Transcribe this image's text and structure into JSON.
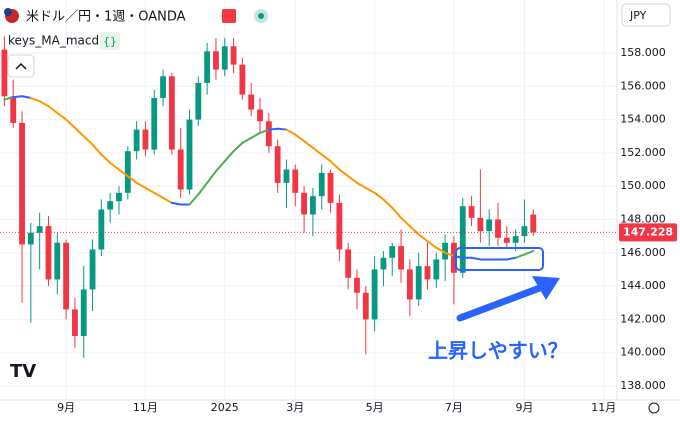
{
  "header": {
    "symbol": "米ドル／円・1週・OANDA",
    "currency": "JPY"
  },
  "chart_data": {
    "type": "candlestick",
    "categories": [
      null,
      null,
      null,
      null,
      null,
      null,
      null,
      "9月",
      null,
      null,
      null,
      null,
      null,
      null,
      null,
      null,
      "11月",
      null,
      null,
      null,
      null,
      null,
      null,
      null,
      null,
      "2025",
      null,
      null,
      null,
      null,
      null,
      null,
      null,
      "3月",
      null,
      null,
      null,
      null,
      null,
      null,
      null,
      null,
      "5月",
      null,
      null,
      null,
      null,
      null,
      null,
      null,
      null,
      "7月",
      null,
      null,
      null,
      null,
      null,
      null,
      null,
      "9月",
      null,
      null,
      null,
      null,
      null,
      null,
      null,
      null,
      "11月",
      null
    ],
    "open": [
      158.2,
      155.4,
      153.8,
      146.5,
      147.2,
      147.6,
      144.4,
      146.6,
      142.6,
      141.0,
      143.8,
      146.2,
      148.6,
      149.1,
      149.6,
      152.1,
      153.4,
      152.2,
      155.3,
      156.6,
      152.2,
      149.8,
      154.0,
      156.2,
      158.1,
      157.0,
      158.4,
      157.3,
      155.5,
      154.6,
      153.9,
      152.4,
      150.2,
      151.0,
      149.6,
      148.3,
      149.4,
      150.8,
      149.0,
      146.2,
      144.5,
      143.6,
      142.0,
      145.0,
      145.7,
      146.4,
      145.0,
      143.2,
      145.2,
      144.4,
      145.6,
      146.6,
      144.8,
      148.8,
      148.1,
      147.3,
      148.0,
      146.9,
      146.6,
      147.0,
      148.3,
      null,
      null,
      null,
      null,
      null,
      null,
      null,
      null,
      null
    ],
    "high": [
      159.0,
      156.4,
      154.5,
      147.8,
      148.4,
      148.2,
      147.2,
      146.8,
      143.3,
      145.2,
      146.8,
      149.2,
      149.6,
      150.0,
      152.4,
      153.9,
      153.9,
      155.8,
      157.0,
      156.8,
      153.5,
      154.6,
      156.6,
      158.6,
      158.9,
      158.9,
      158.9,
      157.7,
      156.2,
      155.3,
      154.4,
      152.8,
      151.6,
      151.3,
      150.0,
      149.9,
      151.3,
      151.0,
      149.5,
      146.6,
      145.0,
      144.0,
      145.8,
      146.1,
      146.6,
      147.4,
      145.6,
      146.0,
      146.6,
      146.0,
      147.1,
      147.0,
      149.3,
      149.4,
      151.0,
      148.6,
      149.0,
      147.6,
      147.4,
      149.2,
      148.6,
      null,
      null,
      null,
      null,
      null,
      null,
      null,
      null,
      null
    ],
    "low": [
      154.8,
      153.5,
      143.0,
      141.8,
      145.0,
      144.0,
      143.5,
      142.0,
      140.3,
      139.7,
      142.5,
      145.8,
      147.8,
      148.3,
      149.2,
      151.6,
      151.8,
      151.9,
      154.8,
      151.9,
      149.3,
      149.5,
      153.6,
      155.5,
      156.4,
      156.6,
      156.8,
      155.2,
      154.2,
      153.2,
      152.0,
      149.6,
      148.7,
      148.8,
      147.2,
      147.0,
      148.6,
      148.4,
      145.5,
      143.8,
      142.6,
      139.9,
      141.3,
      144.0,
      144.6,
      144.2,
      142.2,
      142.8,
      143.8,
      143.9,
      144.3,
      142.9,
      144.5,
      147.6,
      146.6,
      146.4,
      146.4,
      146.3,
      146.1,
      146.6,
      147.0,
      null,
      null,
      null,
      null,
      null,
      null,
      null,
      null,
      null
    ],
    "close": [
      155.4,
      153.8,
      146.5,
      147.2,
      147.6,
      144.4,
      146.6,
      142.6,
      141.0,
      143.8,
      146.2,
      148.6,
      149.1,
      149.6,
      152.1,
      153.4,
      152.2,
      155.3,
      156.6,
      152.2,
      149.8,
      154.0,
      156.2,
      158.1,
      157.0,
      158.4,
      157.3,
      155.5,
      154.6,
      153.9,
      152.4,
      150.2,
      151.0,
      149.6,
      148.3,
      149.4,
      150.8,
      149.0,
      146.2,
      144.5,
      143.6,
      142.0,
      145.0,
      145.7,
      146.4,
      145.0,
      143.2,
      145.2,
      144.4,
      145.6,
      146.6,
      144.8,
      148.8,
      148.1,
      147.3,
      148.0,
      146.9,
      146.6,
      147.0,
      147.6,
      147.228,
      null,
      null,
      null,
      null,
      null,
      null,
      null,
      null,
      null
    ],
    "up_color": "#089981",
    "down_color": "#f23645",
    "ma": {
      "name": "keys_MA_macd",
      "rise_color": "#4caf50",
      "fall_color": "#ff9800",
      "flat_color": "#2962ff",
      "values": [
        155.2,
        155.35,
        155.4,
        155.3,
        155.1,
        154.8,
        154.4,
        154.0,
        153.5,
        153.0,
        152.5,
        151.9,
        151.4,
        151.0,
        150.6,
        150.2,
        149.9,
        149.6,
        149.3,
        149.0,
        148.9,
        148.9,
        149.5,
        150.2,
        150.9,
        151.5,
        152.1,
        152.6,
        152.9,
        153.2,
        153.4,
        153.45,
        153.4,
        153.1,
        152.7,
        152.3,
        151.9,
        151.5,
        151.0,
        150.6,
        150.2,
        149.9,
        149.6,
        149.2,
        148.7,
        148.1,
        147.6,
        147.1,
        146.7,
        146.3,
        146.0,
        145.8,
        145.7,
        145.7,
        145.6,
        145.6,
        145.6,
        145.6,
        145.7,
        145.9,
        146.1,
        null,
        null,
        null,
        null,
        null,
        null,
        null,
        null,
        null
      ]
    },
    "ylim": [
      137.16,
      161.18
    ],
    "yticks": [
      {
        "value": 138,
        "label": "138.000"
      },
      {
        "value": 140,
        "label": "140.000"
      },
      {
        "value": 142,
        "label": "142.000"
      },
      {
        "value": 144,
        "label": "144.000"
      },
      {
        "value": 146,
        "label": "146.000"
      },
      {
        "value": 148,
        "label": "148.000"
      },
      {
        "value": 150,
        "label": "150.000"
      },
      {
        "value": 152,
        "label": "152.000"
      },
      {
        "value": 154,
        "label": "154.000"
      },
      {
        "value": 156,
        "label": "156.000"
      },
      {
        "value": 158,
        "label": "158.000"
      }
    ],
    "last_price": {
      "value": 147.228,
      "label": "147.228",
      "color": "#f23645"
    },
    "annotation": "上昇しやすい？"
  }
}
